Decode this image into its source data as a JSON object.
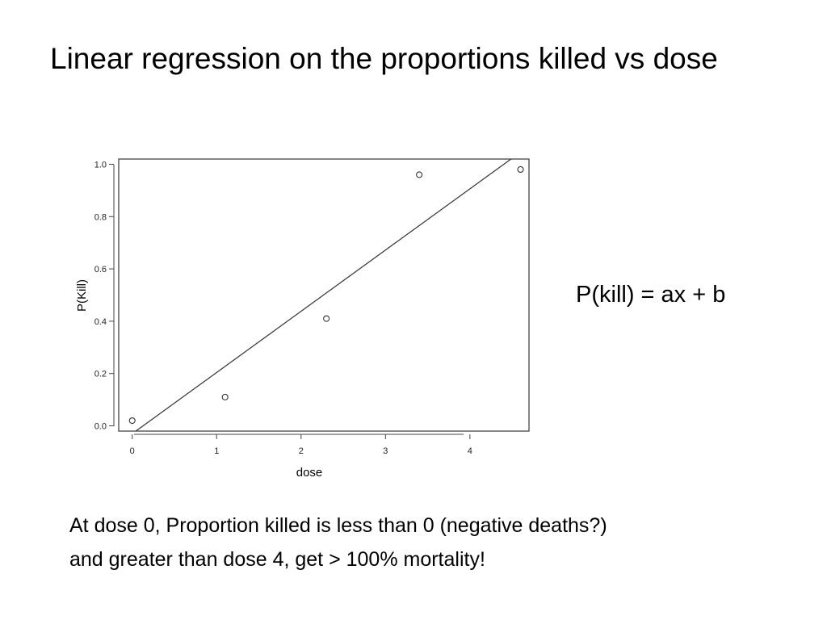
{
  "slide": {
    "title": "Linear regression on the proportions killed vs dose",
    "equation": "P(kill) = ax + b",
    "note_lines": [
      "At dose 0, Proportion killed is less than 0 (negative deaths?)",
      "and greater than dose 4, get > 100% mortality!"
    ]
  },
  "chart_data": {
    "type": "scatter",
    "xlabel": "dose",
    "ylabel": "P(Kill)",
    "xlim": [
      -0.16,
      4.7
    ],
    "ylim": [
      -0.02,
      1.02
    ],
    "xticks": [
      "0",
      "1",
      "2",
      "3",
      "4"
    ],
    "yticks": [
      "0.0",
      "0.2",
      "0.4",
      "0.6",
      "0.8",
      "1.0"
    ],
    "points": [
      {
        "x": 0,
        "y": 0.02
      },
      {
        "x": 1.1,
        "y": 0.11
      },
      {
        "x": 2.3,
        "y": 0.41
      },
      {
        "x": 3.4,
        "y": 0.96
      },
      {
        "x": 4.6,
        "y": 0.98
      }
    ],
    "fit_line": {
      "slope": 0.234,
      "intercept": -0.03
    },
    "grid": false,
    "legend": "none"
  }
}
